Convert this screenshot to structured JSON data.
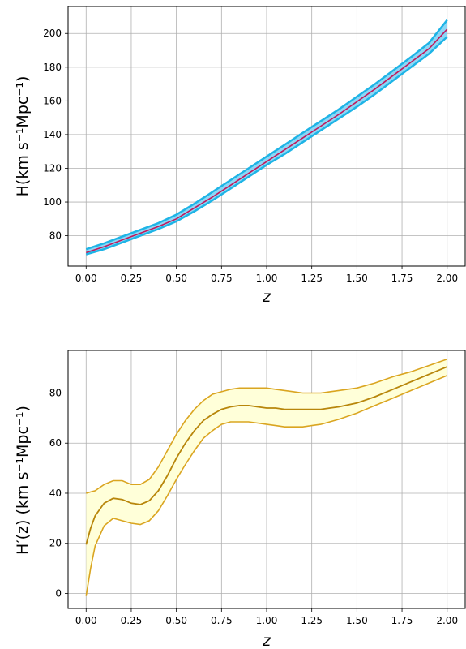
{
  "chart_data": [
    {
      "type": "line",
      "xlabel": "z",
      "ylabel": "H(km s⁻¹Mpc⁻¹)",
      "xlim": [
        -0.1,
        2.1
      ],
      "ylim": [
        62,
        216
      ],
      "xticks": [
        "0.00",
        "0.25",
        "0.50",
        "0.75",
        "1.00",
        "1.25",
        "1.50",
        "1.75",
        "2.00"
      ],
      "yticks": [
        "80",
        "100",
        "120",
        "140",
        "160",
        "180",
        "200"
      ],
      "grid": true,
      "colors": {
        "mean": "#c2185b",
        "band": "#1eb4e6",
        "band_fill": "#7fd3f5"
      },
      "x": [
        0,
        0.1,
        0.2,
        0.3,
        0.4,
        0.5,
        0.6,
        0.7,
        0.8,
        0.9,
        1.0,
        1.1,
        1.2,
        1.3,
        1.4,
        1.5,
        1.6,
        1.7,
        1.8,
        1.9,
        2.0
      ],
      "series": [
        {
          "role": "upper",
          "values": [
            72,
            75.5,
            79.5,
            83.5,
            87.5,
            92.5,
            99,
            106,
            113,
            120,
            127,
            134,
            141,
            148,
            155,
            162.5,
            170,
            178,
            186,
            194.5,
            208
          ]
        },
        {
          "role": "mean",
          "values": [
            70,
            73.5,
            77.5,
            81.5,
            85.5,
            90,
            96.5,
            103,
            110,
            117,
            124,
            131,
            138,
            145,
            152,
            159.5,
            167,
            175,
            183,
            191,
            202.5
          ]
        },
        {
          "role": "lower",
          "values": [
            69,
            72,
            76,
            80,
            84,
            88.5,
            94.5,
            101,
            108,
            115,
            122,
            128.5,
            135.5,
            142.5,
            149.5,
            156.5,
            164,
            172,
            180,
            188,
            198
          ]
        }
      ]
    },
    {
      "type": "line",
      "xlabel": "z",
      "ylabel": "H′(z) (km s⁻¹Mpc⁻¹)",
      "xlim": [
        -0.1,
        2.1
      ],
      "ylim": [
        -6,
        97
      ],
      "xticks": [
        "0.00",
        "0.25",
        "0.50",
        "0.75",
        "1.00",
        "1.25",
        "1.50",
        "1.75",
        "2.00"
      ],
      "yticks": [
        "0",
        "20",
        "40",
        "60",
        "80"
      ],
      "grid": true,
      "colors": {
        "mean": "#b8860b",
        "band": "#daa520",
        "band_fill": "#ffffd9"
      },
      "x": [
        0,
        0.025,
        0.05,
        0.1,
        0.15,
        0.2,
        0.25,
        0.3,
        0.35,
        0.4,
        0.45,
        0.5,
        0.55,
        0.6,
        0.65,
        0.7,
        0.75,
        0.8,
        0.85,
        0.9,
        0.95,
        1.0,
        1.05,
        1.1,
        1.15,
        1.2,
        1.25,
        1.3,
        1.35,
        1.4,
        1.5,
        1.6,
        1.7,
        1.8,
        1.9,
        2.0
      ],
      "series": [
        {
          "role": "upper",
          "values": [
            40,
            40.5,
            41,
            43.5,
            45,
            45,
            43.5,
            43.5,
            45.5,
            50.5,
            57,
            63.5,
            69,
            73.5,
            77,
            79.5,
            80.5,
            81.5,
            82,
            82,
            82,
            82,
            81.5,
            81,
            80.5,
            80,
            80,
            80,
            80.5,
            81,
            82,
            84,
            86.5,
            88.5,
            91,
            93.5
          ]
        },
        {
          "role": "mean",
          "values": [
            19.5,
            26,
            31,
            36,
            38,
            37.5,
            36,
            35.5,
            37,
            41,
            47,
            54,
            60,
            65,
            69,
            71.5,
            73.5,
            74.5,
            75,
            75,
            74.5,
            74,
            74,
            73.5,
            73.5,
            73.5,
            73.5,
            73.5,
            74,
            74.5,
            76,
            78.5,
            81.5,
            84.5,
            87.5,
            90.5
          ]
        },
        {
          "role": "lower",
          "values": [
            -1,
            10,
            19,
            27,
            30,
            29,
            28,
            27.5,
            29,
            33,
            39,
            45.5,
            51.5,
            57,
            62,
            65,
            67.5,
            68.5,
            68.5,
            68.5,
            68,
            67.5,
            67,
            66.5,
            66.5,
            66.5,
            67,
            67.5,
            68.5,
            69.5,
            72,
            75,
            78,
            81,
            84,
            87
          ]
        }
      ]
    }
  ]
}
